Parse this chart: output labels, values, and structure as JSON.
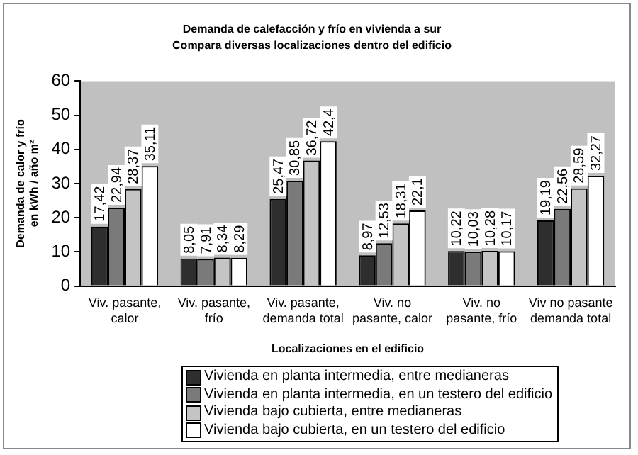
{
  "chart_data": {
    "type": "bar",
    "title": "Demanda de calefacción y frío en vivienda a sur",
    "subtitle": "Compara diversas localizaciones dentro del edificio",
    "xlabel": "Localizaciones en el edificio",
    "ylabel": "Demanda de calor y frío en kWh / año m²",
    "categories": [
      "Viv. pasante, calor",
      "Viv. pasante, frío",
      "Viv. pasante, demanda total",
      "Viv. no pasante, calor",
      "Viv. no pasante, frío",
      "Viv no pasante demanda total"
    ],
    "series": [
      {
        "name": "Vivienda en planta intermedia, entre medianeras",
        "color": "#2e2e2e",
        "values": [
          17.42,
          8.05,
          25.47,
          8.97,
          10.22,
          19.19
        ],
        "value_labels": [
          "17,42",
          "8,05",
          "25,47",
          "8,97",
          "10,22",
          "19,19"
        ]
      },
      {
        "name": "Vivienda en planta intermedia, en un testero del edificio",
        "color": "#7a7a7a",
        "values": [
          22.94,
          7.91,
          30.85,
          12.53,
          10.03,
          22.56
        ],
        "value_labels": [
          "22,94",
          "7,91",
          "30,85",
          "12,53",
          "10,03",
          "22,56"
        ]
      },
      {
        "name": "Vivienda bajo cubierta, entre medianeras",
        "color": "#c4c4c4",
        "values": [
          28.37,
          8.34,
          36.72,
          18.31,
          10.28,
          28.59
        ],
        "value_labels": [
          "28,37",
          "8,34",
          "36,72",
          "18,31",
          "10,28",
          "28,59"
        ]
      },
      {
        "name": "Vivienda bajo cubierta, en un testero del edificio",
        "color": "#ffffff",
        "values": [
          35.11,
          8.29,
          42.4,
          22.1,
          10.17,
          32.27
        ],
        "value_labels": [
          "35,11",
          "8,29",
          "42,4",
          "22,1",
          "10,17",
          "32,27"
        ]
      }
    ],
    "ylim": [
      0,
      60
    ],
    "yticks": [
      0,
      10,
      20,
      30,
      40,
      50,
      60
    ],
    "grid": false,
    "legend": "bottom"
  }
}
